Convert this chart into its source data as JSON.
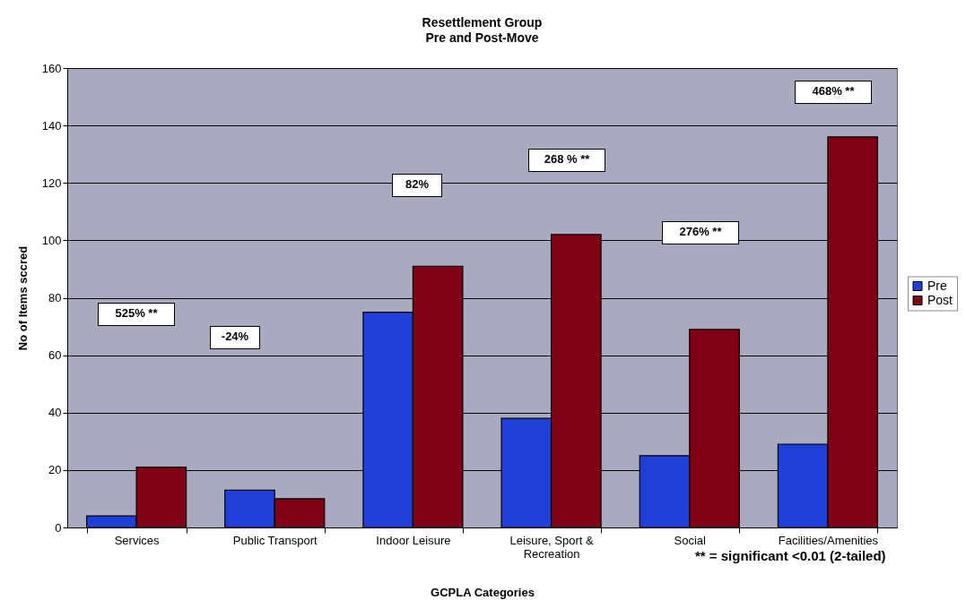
{
  "chart_data": {
    "type": "bar",
    "title": "Resettlement Group",
    "subtitle": "Pre and Post-Move",
    "xlabel": "GCPLA Categories",
    "ylabel": "No of Items sccred",
    "categories": [
      "Services",
      "Public Transport",
      "Indoor Leisure",
      "Leisure, Sport & Recreation",
      "Social",
      "Facilities/Amenities"
    ],
    "series": [
      {
        "name": "Pre",
        "color": "#1f3fd8",
        "values": [
          4,
          13,
          75,
          38,
          25,
          29
        ]
      },
      {
        "name": "Post",
        "color": "#800014",
        "values": [
          21,
          10,
          91,
          102,
          69,
          136
        ]
      }
    ],
    "ylim": [
      0,
      160
    ],
    "yticks": [
      0,
      20,
      40,
      60,
      80,
      100,
      120,
      140,
      160
    ],
    "grid": "y",
    "legend": "right",
    "annotations": [
      "525% **",
      "-24%",
      "82%",
      "268 % **",
      "276% **",
      "468% **",
      "** = significant <0.01 (2-tailed)"
    ]
  }
}
